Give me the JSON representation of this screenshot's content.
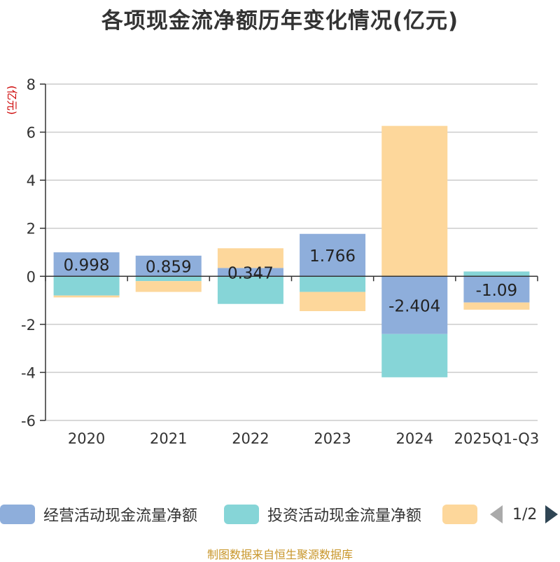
{
  "colors": {
    "operating": "#8eaedb",
    "investing": "#86d5d7",
    "financing": "#fdd79b",
    "axis": "#333333",
    "grid": "#cccccc",
    "unit": "#cc0000",
    "source": "#c8962a"
  },
  "chart_data": {
    "type": "bar",
    "stacked": true,
    "title": "各项现金流净额历年变化情况(亿元)",
    "ylabel": "(亿元)",
    "ylim": [
      -6,
      8
    ],
    "yticks": [
      -6,
      -4,
      -2,
      0,
      2,
      4,
      6,
      8
    ],
    "grid": true,
    "categories": [
      "2020",
      "2021",
      "2022",
      "2023",
      "2024",
      "2025Q1-Q3"
    ],
    "series": [
      {
        "name": "经营活动现金流量净额",
        "color": "#8eaedb",
        "values": [
          0.998,
          0.859,
          0.347,
          1.766,
          -2.404,
          -1.09
        ],
        "labels": [
          "0.998",
          "0.859",
          "0.347",
          "1.766",
          "-2.404",
          "-1.09"
        ]
      },
      {
        "name": "投资活动现金流量净额",
        "color": "#86d5d7",
        "values": [
          -0.8,
          -0.2,
          -1.15,
          -0.65,
          -1.8,
          0.2
        ]
      },
      {
        "name": "",
        "color": "#fdd79b",
        "values": [
          -0.08,
          -0.45,
          0.82,
          -0.8,
          6.26,
          -0.3
        ]
      }
    ],
    "legend": {
      "position": "bottom",
      "page": "1/2"
    }
  },
  "source_text": "制图数据来自恒生聚源数据库"
}
